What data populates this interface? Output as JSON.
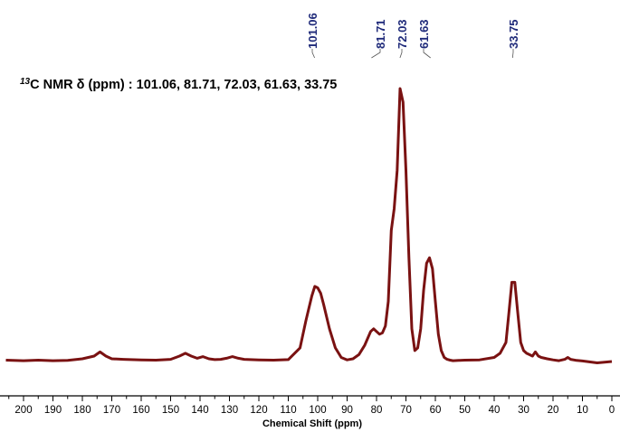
{
  "chart_data": {
    "type": "line",
    "title_sup": "13",
    "title_main": "C NMR δ (ppm) : 101.06, 81.71, 72.03, 61.63, 33.75",
    "xlabel": "Chemical Shift (ppm)",
    "ylabel": "",
    "xlim": [
      205,
      0
    ],
    "ylim": [
      0,
      100
    ],
    "xticks": [
      200,
      190,
      180,
      170,
      160,
      150,
      140,
      130,
      120,
      110,
      100,
      90,
      80,
      70,
      60,
      50,
      40,
      30,
      20,
      10,
      0
    ],
    "grid": false,
    "legend": "none",
    "peak_labels": [
      "101.06",
      "81.71",
      "72.03",
      "61.63",
      "33.75"
    ],
    "peak_positions": [
      101.06,
      81.71,
      72.03,
      61.63,
      33.75
    ],
    "series": [
      {
        "color": "#7a1212",
        "x": [
          206,
          200,
          195,
          190,
          185,
          180,
          176,
          174,
          172,
          170,
          166,
          160,
          155,
          150,
          147,
          145,
          143,
          141,
          139,
          137,
          135,
          133,
          131,
          129,
          127,
          125,
          120,
          115,
          110,
          106,
          104,
          102,
          101,
          100,
          99,
          98,
          96,
          94,
          92,
          90,
          88,
          86,
          84,
          82,
          81,
          80,
          79,
          78,
          77,
          76,
          75,
          74,
          73,
          72,
          71,
          70,
          69,
          68,
          67,
          66,
          65,
          64,
          63,
          62,
          61,
          60,
          59,
          58,
          57,
          56,
          55,
          54,
          52,
          50,
          45,
          40,
          38,
          36,
          35,
          34,
          33,
          32,
          31,
          30,
          29,
          28,
          27,
          26,
          25,
          24,
          22,
          20,
          18,
          16,
          15,
          14,
          12,
          10,
          5,
          0
        ],
        "y": [
          0.5,
          0.3,
          0.5,
          0.3,
          0.4,
          1.0,
          2.0,
          3.5,
          2.0,
          1.0,
          0.8,
          0.6,
          0.5,
          0.8,
          2.0,
          3.0,
          2.0,
          1.2,
          1.8,
          1.0,
          0.7,
          0.8,
          1.2,
          1.8,
          1.2,
          0.8,
          0.6,
          0.5,
          0.7,
          5.0,
          15.0,
          24.0,
          27.5,
          27.0,
          25.0,
          21.0,
          12.0,
          5.0,
          1.5,
          0.6,
          1.0,
          2.5,
          6.0,
          11.0,
          12.0,
          11.0,
          10.0,
          10.5,
          13.0,
          22.0,
          48.0,
          56.0,
          70.0,
          100.0,
          95.0,
          70.0,
          38.0,
          12.0,
          4.0,
          5.0,
          12.0,
          26.0,
          36.0,
          38.0,
          34.0,
          22.0,
          10.0,
          4.0,
          1.5,
          0.8,
          0.5,
          0.3,
          0.4,
          0.5,
          0.6,
          1.5,
          3.0,
          7.0,
          18.0,
          29.0,
          29.0,
          18.0,
          7.0,
          4.0,
          3.0,
          2.5,
          2.0,
          3.5,
          2.0,
          1.5,
          1.0,
          0.6,
          0.3,
          0.8,
          1.5,
          0.8,
          0.4,
          0.2,
          -0.5,
          0.0
        ]
      }
    ]
  }
}
